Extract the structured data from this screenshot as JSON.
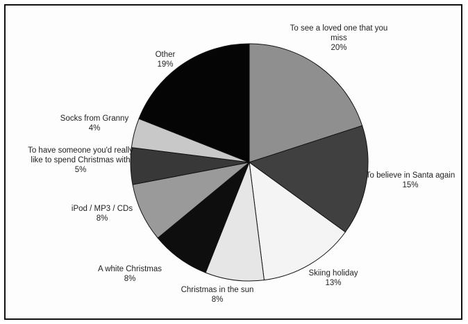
{
  "chart_data": {
    "type": "pie",
    "title": "",
    "start_angle_deg": 0,
    "direction": "clockwise",
    "slices": [
      {
        "label_lines": [
          "To see a loved one that you",
          "miss"
        ],
        "value": 20,
        "value_text": "20%",
        "color": "#8f8f8f"
      },
      {
        "label_lines": [
          "To believe in Santa again"
        ],
        "value": 15,
        "value_text": "15%",
        "color": "#404040"
      },
      {
        "label_lines": [
          "Skiing holiday"
        ],
        "value": 13,
        "value_text": "13%",
        "color": "#f4f4f4"
      },
      {
        "label_lines": [
          "Christmas in the sun"
        ],
        "value": 8,
        "value_text": "8%",
        "color": "#e6e6e6"
      },
      {
        "label_lines": [
          "A white Christmas"
        ],
        "value": 8,
        "value_text": "8%",
        "color": "#0e0e0e"
      },
      {
        "label_lines": [
          "iPod / MP3 / CDs"
        ],
        "value": 8,
        "value_text": "8%",
        "color": "#9a9a9a"
      },
      {
        "label_lines": [
          "To have someone you'd really",
          "like to spend Christmas with"
        ],
        "value": 5,
        "value_text": "5%",
        "color": "#383838"
      },
      {
        "label_lines": [
          "Socks from Granny"
        ],
        "value": 4,
        "value_text": "4%",
        "color": "#c8c8c8"
      },
      {
        "label_lines": [
          "Other"
        ],
        "value": 19,
        "value_text": "19%",
        "color": "#050505"
      }
    ]
  }
}
